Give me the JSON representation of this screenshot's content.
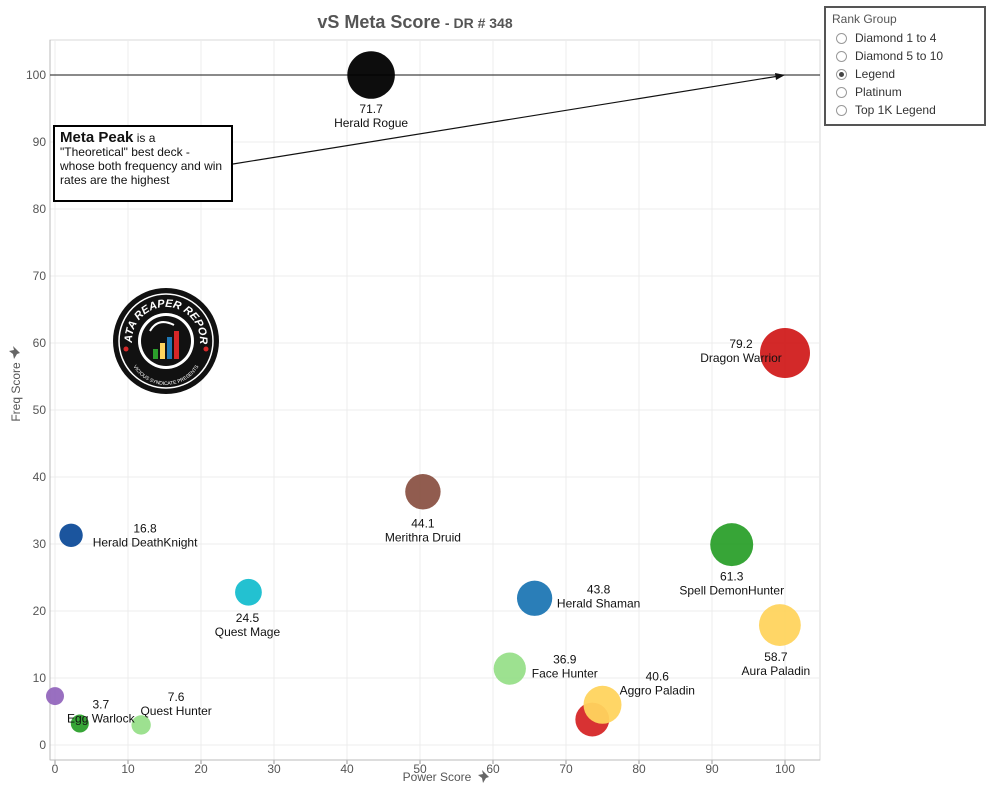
{
  "title": {
    "main": "vS Meta Score",
    "sub": "- DR # 348"
  },
  "legend": {
    "title": "Rank Group",
    "items": [
      {
        "label": "Diamond 1 to 4",
        "selected": false
      },
      {
        "label": "Diamond 5 to 10",
        "selected": false
      },
      {
        "label": "Legend",
        "selected": true
      },
      {
        "label": "Platinum",
        "selected": false
      },
      {
        "label": "Top 1K Legend",
        "selected": false
      }
    ]
  },
  "annotation": {
    "bold": "Meta Peak",
    "text": "is a \"Theoretical\" best deck - whose both frequency and win rates are the highest"
  },
  "logo": {
    "text": "DATA REAPER REPORT",
    "subtext": "VICIOUS SYNDICATE PRESENTS"
  },
  "chart_data": {
    "type": "scatter",
    "subtype": "bubble",
    "title": "vS Meta Score - DR # 348",
    "xlabel": "Power Score",
    "ylabel": "Freq Score",
    "xlim": [
      0,
      100
    ],
    "ylim": [
      0,
      100
    ],
    "xticks": [
      0,
      10,
      20,
      30,
      40,
      50,
      60,
      70,
      80,
      90,
      100
    ],
    "yticks": [
      0,
      10,
      20,
      30,
      40,
      50,
      60,
      70,
      80,
      90,
      100
    ],
    "reference_line_y": 100,
    "points": [
      {
        "name": "Herald Rogue",
        "x": 43.3,
        "y": 100,
        "score": "71.7",
        "color": "#000000"
      },
      {
        "name": "Dragon Warrior",
        "x": 100,
        "y": 58.5,
        "score": "79.2",
        "color": "#d11e1e"
      },
      {
        "name": "Merithra Druid",
        "x": 50.4,
        "y": 37.8,
        "score": "44.1",
        "color": "#8b5346"
      },
      {
        "name": "Herald DeathKnight",
        "x": 2.2,
        "y": 31.3,
        "score": "16.8",
        "color": "#0f4c99"
      },
      {
        "name": "Spell DemonHunter",
        "x": 92.7,
        "y": 29.9,
        "score": "61.3",
        "color": "#2ca02c"
      },
      {
        "name": "Quest Mage",
        "x": 26.5,
        "y": 22.8,
        "score": "24.5",
        "color": "#17becf"
      },
      {
        "name": "Herald Shaman",
        "x": 65.7,
        "y": 21.9,
        "score": "43.8",
        "color": "#1f77b4"
      },
      {
        "name": "Aura Paladin",
        "x": 99.3,
        "y": 17.9,
        "score": "58.7",
        "color": "#ffd45e"
      },
      {
        "name": "Face Hunter",
        "x": 62.3,
        "y": 11.4,
        "score": "36.9",
        "color": "#98df8a"
      },
      {
        "name": "Aggro Paladin",
        "x": 73.6,
        "y": 3.8,
        "score": "40.6",
        "color": "#d62728"
      },
      {
        "name": "Aggro Paladin (secondary)",
        "x": 75.0,
        "y": 6.0,
        "score": "",
        "color": "#ffd45e"
      },
      {
        "name": "Egg Warlock",
        "x": 3.4,
        "y": 3.2,
        "score": "3.7",
        "color": "#2ca02c"
      },
      {
        "name": "Quest Hunter",
        "x": 11.8,
        "y": 3.0,
        "score": "7.6",
        "color": "#98df8a"
      },
      {
        "name": "(unlabeled purple deck)",
        "x": 0,
        "y": 7.3,
        "score": "",
        "color": "#9467bd"
      }
    ]
  }
}
